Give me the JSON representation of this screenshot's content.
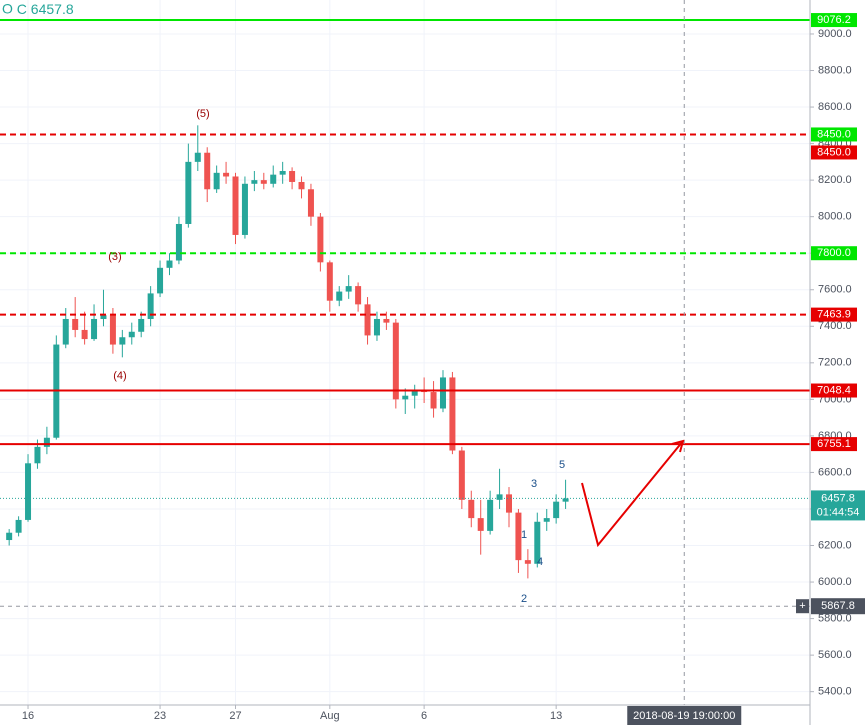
{
  "chart_data": {
    "type": "candlestick",
    "header": {
      "label": "C",
      "value": 6457.8
    },
    "x": [
      "2018-07-15T00:00",
      "2018-07-15T12:00",
      "2018-07-16T00:00",
      "2018-07-16T12:00",
      "2018-07-17T00:00",
      "2018-07-17T12:00",
      "2018-07-18T00:00",
      "2018-07-18T12:00",
      "2018-07-19T00:00",
      "2018-07-19T12:00",
      "2018-07-20T00:00",
      "2018-07-20T12:00",
      "2018-07-21T00:00",
      "2018-07-21T12:00",
      "2018-07-22T00:00",
      "2018-07-22T12:00",
      "2018-07-23T00:00",
      "2018-07-23T12:00",
      "2018-07-24T00:00",
      "2018-07-24T12:00",
      "2018-07-25T00:00",
      "2018-07-25T12:00",
      "2018-07-26T00:00",
      "2018-07-26T12:00",
      "2018-07-27T00:00",
      "2018-07-27T12:00",
      "2018-07-28T00:00",
      "2018-07-28T12:00",
      "2018-07-29T00:00",
      "2018-07-29T12:00",
      "2018-07-30T00:00",
      "2018-07-30T12:00",
      "2018-07-31T00:00",
      "2018-07-31T12:00",
      "2018-08-01T00:00",
      "2018-08-01T12:00",
      "2018-08-02T00:00",
      "2018-08-02T12:00",
      "2018-08-03T00:00",
      "2018-08-03T12:00",
      "2018-08-04T00:00",
      "2018-08-04T12:00",
      "2018-08-05T00:00",
      "2018-08-05T12:00",
      "2018-08-06T00:00",
      "2018-08-06T12:00",
      "2018-08-07T00:00",
      "2018-08-07T12:00",
      "2018-08-08T00:00",
      "2018-08-08T12:00",
      "2018-08-09T00:00",
      "2018-08-09T12:00",
      "2018-08-10T00:00",
      "2018-08-10T12:00",
      "2018-08-11T00:00",
      "2018-08-11T12:00",
      "2018-08-12T00:00",
      "2018-08-12T12:00",
      "2018-08-13T00:00",
      "2018-08-13T12:00"
    ],
    "open": [
      6230,
      6270,
      6340,
      6650,
      6740,
      6790,
      7300,
      7440,
      7380,
      7330,
      7440,
      7460,
      7300,
      7340,
      7370,
      7440,
      7580,
      7720,
      7760,
      7960,
      8300,
      8350,
      8150,
      8240,
      8220,
      7900,
      8180,
      8200,
      8180,
      8230,
      8250,
      8190,
      8150,
      8000,
      7750,
      7540,
      7590,
      7620,
      7520,
      7350,
      7440,
      7420,
      7000,
      7020,
      7050,
      7040,
      6950,
      7120,
      6720,
      6450,
      6350,
      6280,
      6450,
      6480,
      6380,
      6120,
      6100,
      6330,
      6350,
      6440
    ],
    "high": [
      6290,
      6360,
      6700,
      6780,
      6850,
      7350,
      7500,
      7560,
      7480,
      7520,
      7600,
      7500,
      7380,
      7420,
      7480,
      7620,
      7760,
      7800,
      8000,
      8400,
      8500,
      8380,
      8280,
      8300,
      8240,
      8220,
      8250,
      8240,
      8280,
      8300,
      8270,
      8220,
      8180,
      8020,
      7760,
      7620,
      7680,
      7640,
      7560,
      7480,
      7480,
      7440,
      7060,
      7080,
      7120,
      7100,
      7160,
      7150,
      6740,
      6500,
      6450,
      6500,
      6620,
      6520,
      6400,
      6180,
      6380,
      6400,
      6480,
      6560
    ],
    "low": [
      6200,
      6250,
      6330,
      6620,
      6700,
      6780,
      7280,
      7340,
      7300,
      7320,
      7400,
      7250,
      7230,
      7300,
      7340,
      7400,
      7560,
      7680,
      7740,
      7940,
      8250,
      8080,
      8130,
      8180,
      7850,
      7880,
      8140,
      8150,
      8160,
      8180,
      8150,
      8100,
      7950,
      7700,
      7480,
      7510,
      7550,
      7480,
      7300,
      7320,
      7380,
      6950,
      6920,
      6950,
      6980,
      6900,
      6930,
      6700,
      6400,
      6300,
      6150,
      6260,
      6400,
      6300,
      6050,
      6020,
      6080,
      6280,
      6320,
      6400
    ],
    "close": [
      6270,
      6340,
      6650,
      6740,
      6790,
      7300,
      7440,
      7380,
      7330,
      7440,
      7460,
      7300,
      7340,
      7370,
      7440,
      7580,
      7720,
      7760,
      7960,
      8300,
      8350,
      8150,
      8240,
      8220,
      7900,
      8180,
      8200,
      8180,
      8230,
      8250,
      8190,
      8150,
      8000,
      7750,
      7540,
      7590,
      7620,
      7520,
      7350,
      7440,
      7420,
      7000,
      7020,
      7050,
      7040,
      6950,
      7120,
      6720,
      6450,
      6350,
      6280,
      6450,
      6480,
      6380,
      6120,
      6100,
      6330,
      6350,
      6440,
      6457.8
    ],
    "up_color": "#26a69a",
    "down_color": "#ef5350",
    "xlim": [
      "2018-07-14T12:20",
      "2018-08-26T11:00"
    ],
    "xticks": [
      {
        "value": "2018-07-16T00:00",
        "label": "16"
      },
      {
        "value": "2018-07-23T00:00",
        "label": "23"
      },
      {
        "value": "2018-07-27T00:00",
        "label": "27"
      },
      {
        "value": "2018-08-01T00:00",
        "label": "Aug"
      },
      {
        "value": "2018-08-06T00:00",
        "label": "6"
      },
      {
        "value": "2018-08-13T00:00",
        "label": "13"
      }
    ],
    "ylim": [
      5327,
      9186
    ],
    "yticks": [
      {
        "value": 5400,
        "label": "5400.0"
      },
      {
        "value": 5600,
        "label": "5600.0"
      },
      {
        "value": 5800,
        "label": "5800.0"
      },
      {
        "value": 6000,
        "label": "6000.0"
      },
      {
        "value": 6200,
        "label": "6200.0"
      },
      {
        "value": 6400,
        "label": "6400.0"
      },
      {
        "value": 6600,
        "label": "6600.0"
      },
      {
        "value": 6800,
        "label": "6800.0"
      },
      {
        "value": 7000,
        "label": "7000.0"
      },
      {
        "value": 7200,
        "label": "7200.0"
      },
      {
        "value": 7400,
        "label": "7400.0"
      },
      {
        "value": 7600,
        "label": "7600.0"
      },
      {
        "value": 7800,
        "label": "7800.0"
      },
      {
        "value": 8000,
        "label": "8000.0"
      },
      {
        "value": 8200,
        "label": "8200.0"
      },
      {
        "value": 8400,
        "label": "8400.0"
      },
      {
        "value": 8600,
        "label": "8600.0"
      },
      {
        "value": 8800,
        "label": "8800.0"
      },
      {
        "value": 9000,
        "label": "9000.0"
      }
    ],
    "grid": true,
    "levels": [
      {
        "value": 9076.2,
        "label": "9076.2",
        "color": "#00e600",
        "dashed": false
      },
      {
        "value": 8450,
        "label": "8450.0",
        "color": "#00e600",
        "dashed": true
      },
      {
        "value": 8450,
        "label": "8450.0",
        "color": "#e60000",
        "dashed": true
      },
      {
        "value": 7800,
        "label": "7800.0",
        "color": "#00e600",
        "dashed": true
      },
      {
        "value": 7463.9,
        "label": "7463.9",
        "color": "#e60000",
        "dashed": true
      },
      {
        "value": 7048.4,
        "label": "7048.4",
        "color": "#e60000",
        "dashed": false
      },
      {
        "value": 6755.1,
        "label": "6755.1",
        "color": "#e60000",
        "dashed": false
      }
    ],
    "last_price": {
      "value": 6457.8,
      "label": "6457.8",
      "countdown": "01:44:54",
      "color": "#26a69a"
    },
    "crosshair": {
      "x": "2018-08-19T19:00",
      "x_label": "2018-08-19 19:00:00",
      "y": 5867.8,
      "y_label": "5867.8"
    },
    "annotations": [
      "(5)",
      "(3)",
      "(4)",
      "1",
      "2",
      "3",
      "4",
      "5"
    ]
  }
}
